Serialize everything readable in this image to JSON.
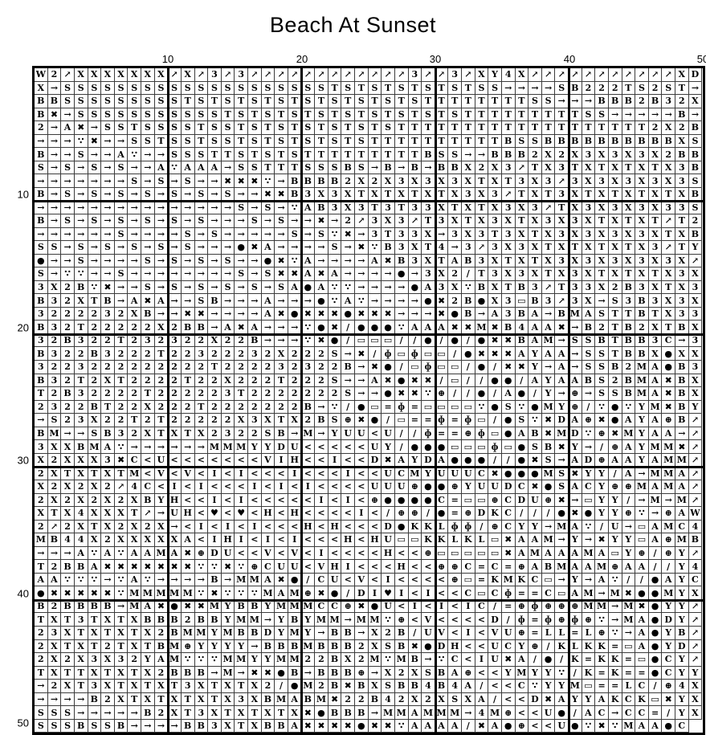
{
  "title": "Beach At Sunset",
  "axis": {
    "top_labels": [
      "10",
      "20",
      "30",
      "40",
      "50"
    ],
    "left_labels": [
      "10",
      "20",
      "30",
      "40",
      "50"
    ]
  },
  "grid": {
    "columns": 50,
    "rows_visible": 50,
    "symbol_legend": {
      "↗": "arrow-northeast-icon",
      "→": "arrow-right-icon",
      "✖": "heavy-x-icon",
      "●": "filled-circle-icon",
      "∵": "dotted-bar-icon",
      "/": "slash-icon",
      "▭": "rounded-rectangle-icon",
      "=": "equals-icon",
      "ɸ": "circle-vertical-bar-icon",
      "⊕": "circle-cross-icon",
      "♥": "heart-icon",
      "<": "less-than-icon"
    },
    "rows": [
      "W2↗XXXXXXX↗X↗3↗3↗↗↗↗↗↗↗↗↗↗↗↗3↗↗3↗XY4X↗↗↗↗↗↗↗↗↗↗↗XD",
      "X→SSSSSSSSSSSSSSSSSSSSTSTSTSTSTSTSS→→→→SB222TS2ST→",
      "BBSSSSSSSSSTSTSTSTSTSTSTSTSTSTTTTTTTTSS→→→BBB2B32X",
      "B✖→SSSSSSSSSSSTSTSTSTSTSTSTSTSTSTTTTTTTTTSS→→→→→B→",
      "2→A✖→SSTSSSSTSSTSTSTSTSTSTSTTTTTTTTTTTTTTTTTTT2X2",
      "B→→→∵✖→→SSTSSTSSTSTSTSTSTSTTTTTTTTTTBSSBBBBBBBBBBX",
      "SB→→S→→A∵→→SSSTTSTSTSTTTTTTTTTBSS→→BBB2X2X3X3X3X2B",
      "BS→S→S→S→→A∵AAA→SSTTTSSSBS→B→B→BBX2X3↗TX3TXTXTXTX3",
      "B→→→→→→→S→S→S→→✖✖✖∵→BBBB2X2X3X3X3XTXT3X3↗3X3X3X3X3",
      "SB→S→S→S→S→S→S→S→→✖✖B3X3XTXTXTXTX3X3↗TXT3XTXTXTXTX",
      "B→→→→→→→→→→→→→→→S→S→∵AB3X3T3T33XTXTX3X3↗TX3X3X3X33",
      "SB→S→S→S→S→S→S→→→S→S→→✖→2↗3X3↗T3XTX3XTX3X3XTXTXT↗T",
      "2→→→→→→S→→→→S→S→→→→→S→S∵✖→3T33X→3X3T3XTX3X3X3X3XTX",
      "BSS→S→S→S→S→S→→→●✖A→→→→S→✖∵B3XT4→3↗3X3XTXTXTXTX3↗T",
      "Y●→→S→→→→S→S→S→S→→●✖∵A→→→→A✖B3XTAB3XTXTX3X3X3X3X3X",
      "↗S→∵∵→→S→→→→→→→→S→S✖✖A✖A→→→→●→3X2/T3X3XTX3XTXTXTX3",
      "X3X2B∵✖→→S→S→S→S→S→SA●A∵∵→→→→●A3X∵BXTB3↗T33X2B3XTX",
      "3B32XTB→A✖A→→SB→→→A→→→●∵A∵→→→→●✖2B●X3▭B3↗3X→S3B3X3",
      "X3222232XB→→✖✖→→→→A✖●✖✖✖●✖✖✖→→→✖●B→A3BA→BMASTTBTX3",
      "3B32T22222X2BB→A✖A→→→∵●✖/●●●∵AAA✖✖M✖B4AA✖→B2TB2XTB",
      "X32B322T232322X22B→→→∵✖●/▭▭▭//●/●/●✖✖BAM→SSBTBB3C→",
      "3B322B3222T22322232X222S→✖/ɸ▭ɸ▭▭/●✖✖✖AYAA→SSTBBX●X",
      "X3223222222222T222232322B→✖●/▭ɸ▭▭/●/✖✖Y→A→SSB2MA●B",
      "3B32T2XT2222T22X222T222S→→A✖●✖✖/▭//●●/AYAABS2BMA✖B",
      "XT2B32222T222223T2222222S→→●✖✖∵⊕//●/A●/Y→⊕→SSBMA✖B",
      "X2322BT22X222T2222222B→∵/●▭=ɸ=▭▭▭▭∵●S∵●MY⊕/∵●∵YM✖B",
      "Y→S23X22T2T22222X3XTX2BS⊕✖●/▭==ɸ=ɸ▭/●S∵✖DA⊕✖●AYA⊕B",
      "↗BM→→SB32XTXTX2322SB→M→YUU<U//ɸ==⊕ɸ▭●AB✖MD∵⊕✖MYAA→",
      "↗3XXBMA∵→→→→→→MMMYYDU<<<<<UY/●●●▭▭▭ɸ▭●SB✖Y→/⊕AYMM✖",
      "↗X2XXX3✖C<U<<<<<<<VIH<<I<<D✖AYDA●●●//●✖S→AD⊕AAYAMM",
      "↗2XTXTXTM<V<V<I<I<<<I<<<I<<UCMYUUUC✖●●●MS✖YY/A→MMA",
      "↗X2X2X2↗4C<I<I<<<I<I<I<<<<UUU⊕●●⊕YUUDC✖●SACY⊕⊕MAMA",
      "↗2X2X2X2XBYH<<I<I<<<<<I<I<⊕●●●●C=▭▭⊕CDU⊕✖→▭YY/→M→M",
      "↗XTX4XXXT↗→UH<♥<♥<H<H<<<<I</⊕⊕/●=⊕DKC///●✖●YY⊕∵→⊕A",
      "W2↗2XTX2X2X→<I<I<I<<<H<H<<<D●KKLɸɸ/⊕CYY→MA∵/U→▭AMC",
      "4MB44X2XXXXXA<IHI<I<I<<<H<HU▭▭KKLKL▭✖AAM→Y→✖YY▭A⊕M",
      "B→→→A∵A∵AAMA✖⊕DU<<V<V<I<<<<H<<⊕▭▭▭▭▭✖AMAAAMA▭Y⊕/⊕Y",
      "↗T2BBA✖✖✖✖✖✖✖∵∵✖∵⊕CUU<VHI<<<H<<⊕⊕C=C=⊕ABMAAM⊕AA//Y",
      "4AA∵∵∵→∵A∵→→→→B→MMA✖●/CU<V<I<<<<⊕▭=KMKC▭→Y→A∵//●AY",
      "C●✖✖✖✖✖∵MMMMM∵✖∵∵∵MAM⊕✖●/DI♥I<I<<C▭Cɸ==C▭AM→M✖●●MY",
      "XB2BBBB→MA✖●✖✖MYBBYMMMCC⊕✖●U<I<I<IC/=⊕ɸ⊕⊕⊕MM→M✖●YY",
      "↗TXT3TXTXBBB2BBYMM→YBYMM→MM∵⊕<V<<<<D/ɸ=ɸ⊕ɸ⊕∵→MA●DY",
      "↗23XTXTXTX2BMMYMBBDYMY→BB→X2B/UV<I<VU⊕=LL=L⊕∵→A●YB",
      "↗2XTXT2TXTBM⊕YYYY→BBBMBBB2XSB✖●DH<<UCY⊕/KLKK=▭A●YD",
      "↗2X2X3X32YAM∵∵∵MMYYMM22BX2M∵MB→∵C<IU✖A/●/K=KK=▭●CY",
      "↗TXTTXTXTX2BBB→M→✖✖●B→BBB⊕→X2XSBA⊕<<YMYY∵/K=K==●CY",
      "Y→2XT3XTXTXT3XTXTX2/●M2B✖BXSBB4B4A/<<C∵YYM▭==LC/⊕4",
      "X→→→→B2XTXTXTXTX3XBMABM✖22B42X2XSXA/<<D✖AYYAKCK▭✖Y",
      "XSSS→→→→→B2XT3XTXTXTX✖●BBB→MMAMMM→4M⊕<<U●/AC→CC=/Y",
      "XSSSBSSB→→→→BB3XTXBBA✖✖✖✖●✖✖∵AAAA/✖A●⊕<<U●∵✖∵MAA●C"
    ]
  }
}
